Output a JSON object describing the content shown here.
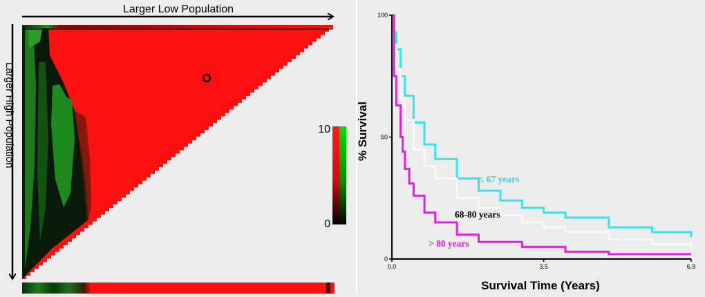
{
  "chart_data": [
    {
      "type": "heatmap",
      "title": "",
      "xlabel": "Larger Low Population",
      "ylabel": "Larger High Population",
      "colorbar": {
        "min_label": "0",
        "max_label": "10",
        "colors": [
          "#000000",
          "#00cc00",
          "#ff0000"
        ]
      },
      "dominant_value": "red (high)",
      "marker": "circle"
    },
    {
      "type": "line",
      "title": "",
      "xlabel": "Survival Time (Years)",
      "ylabel": "% Survival",
      "xlim": [
        0,
        6.9
      ],
      "ylim": [
        0,
        100
      ],
      "xticks": [
        "0.0",
        "3.5",
        "6.9"
      ],
      "yticks": [
        "0",
        "50",
        "100"
      ],
      "series": [
        {
          "name": "≤ 67 years",
          "color": "#33e6e6",
          "x": [
            0.05,
            0.1,
            0.2,
            0.3,
            0.5,
            0.75,
            1.0,
            1.5,
            2.0,
            2.5,
            3.0,
            3.5,
            4.0,
            5.0,
            6.0,
            6.9
          ],
          "y": [
            93,
            86,
            75,
            67,
            56,
            47,
            41,
            33,
            28,
            24,
            21,
            19,
            17,
            13,
            11,
            9
          ]
        },
        {
          "name": "68-80 years",
          "color": "#f8f8f8",
          "x": [
            0.05,
            0.1,
            0.2,
            0.3,
            0.5,
            0.75,
            1.0,
            1.5,
            2.0,
            2.5,
            3.0,
            3.5,
            4.0,
            5.0,
            6.0,
            6.9
          ],
          "y": [
            88,
            78,
            66,
            57,
            45,
            38,
            33,
            25,
            21,
            18,
            15,
            13,
            11,
            8,
            6,
            4
          ]
        },
        {
          "name": "> 80 years",
          "color": "#e020e0",
          "x": [
            0,
            0.05,
            0.1,
            0.2,
            0.25,
            0.3,
            0.4,
            0.5,
            0.75,
            1.0,
            1.5,
            2.0,
            3.0,
            4.0,
            5.0,
            6.9
          ],
          "y": [
            100,
            75,
            63,
            50,
            44,
            37,
            31,
            26,
            19,
            15,
            10,
            7,
            5,
            3,
            2,
            2
          ]
        }
      ]
    }
  ]
}
